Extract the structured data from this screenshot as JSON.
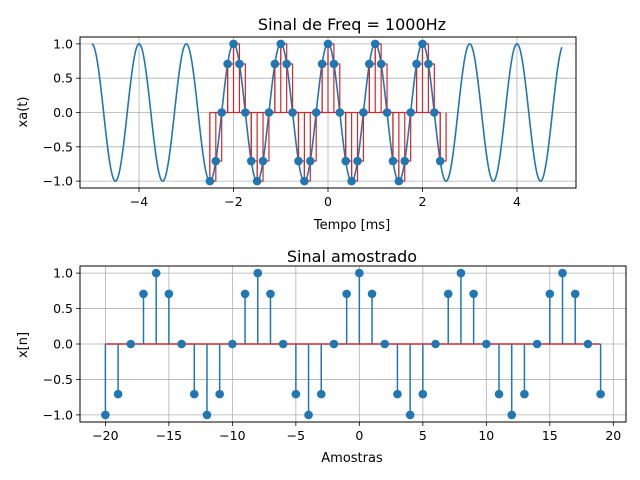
{
  "chart_data": [
    {
      "type": "line",
      "title": "Sinal de Freq = 1000Hz",
      "xlabel": "Tempo [ms]",
      "ylabel": "xa(t)",
      "xlim": [
        -5.25,
        5.25
      ],
      "ylim": [
        -1.1,
        1.1
      ],
      "xticks": [
        -4,
        -2,
        0,
        2,
        4
      ],
      "yticks": [
        -1.0,
        -0.5,
        0.0,
        0.5,
        1.0
      ],
      "grid": true,
      "series": [
        {
          "kind": "continuous",
          "function": "cos(2*pi*1*t)",
          "t_range": [
            -5,
            4.95
          ],
          "color": "#1f77b4"
        },
        {
          "kind": "stem",
          "t": [
            -2.5,
            -2.375,
            -2.25,
            -2.125,
            -2.0,
            -1.875,
            -1.75,
            -1.625,
            -1.5,
            -1.375,
            -1.25,
            -1.125,
            -1.0,
            -0.875,
            -0.75,
            -0.625,
            -0.5,
            -0.375,
            -0.25,
            -0.125,
            0.0,
            0.125,
            0.25,
            0.375,
            0.5,
            0.625,
            0.75,
            0.875,
            1.0,
            1.125,
            1.25,
            1.375,
            1.5,
            1.625,
            1.75,
            1.875,
            2.0,
            2.125,
            2.25,
            2.375
          ],
          "values": [
            -1.0,
            -0.707,
            0.0,
            0.707,
            1.0,
            0.707,
            0.0,
            -0.707,
            -1.0,
            -0.707,
            0.0,
            0.707,
            1.0,
            0.707,
            0.0,
            -0.707,
            -1.0,
            -0.707,
            0.0,
            0.707,
            1.0,
            0.707,
            0.0,
            -0.707,
            -1.0,
            -0.707,
            0.0,
            0.707,
            1.0,
            0.707,
            0.0,
            -0.707,
            -1.0,
            -0.707,
            0.0,
            0.707,
            1.0,
            0.707,
            0.0,
            -0.707
          ],
          "stem_color": "#d62728",
          "marker_color": "#1f77b4",
          "stairs": true
        }
      ]
    },
    {
      "type": "stem",
      "title": "Sinal amostrado",
      "xlabel": "Amostras",
      "ylabel": "x[n]",
      "xlim": [
        -22,
        21
      ],
      "ylim": [
        -1.1,
        1.1
      ],
      "xticks": [
        -20,
        -15,
        -10,
        -5,
        0,
        5,
        10,
        15,
        20
      ],
      "yticks": [
        -1.0,
        -0.5,
        0.0,
        0.5,
        1.0
      ],
      "grid": true,
      "x": [
        -20,
        -19,
        -18,
        -17,
        -16,
        -15,
        -14,
        -13,
        -12,
        -11,
        -10,
        -9,
        -8,
        -7,
        -6,
        -5,
        -4,
        -3,
        -2,
        -1,
        0,
        1,
        2,
        3,
        4,
        5,
        6,
        7,
        8,
        9,
        10,
        11,
        12,
        13,
        14,
        15,
        16,
        17,
        18,
        19
      ],
      "values": [
        -1.0,
        -0.707,
        0.0,
        0.707,
        1.0,
        0.707,
        0.0,
        -0.707,
        -1.0,
        -0.707,
        0.0,
        0.707,
        1.0,
        0.707,
        0.0,
        -0.707,
        -1.0,
        -0.707,
        0.0,
        0.707,
        1.0,
        0.707,
        0.0,
        -0.707,
        -1.0,
        -0.707,
        0.0,
        0.707,
        1.0,
        0.707,
        0.0,
        -0.707,
        -1.0,
        -0.707,
        0.0,
        0.707,
        1.0,
        0.707,
        0.0,
        -0.707
      ],
      "stem_color": "#1f77b4",
      "marker_color": "#1f77b4",
      "baseline_color": "#d62728"
    }
  ]
}
